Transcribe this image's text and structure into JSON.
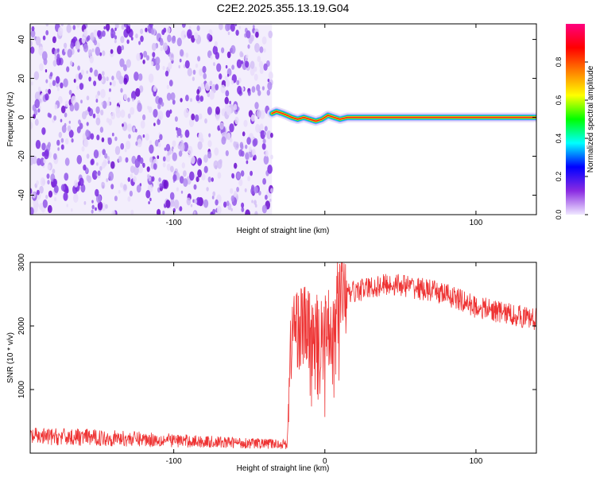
{
  "figure": {
    "title": "C2E2.2025.355.13.19.G04"
  },
  "chart_data": [
    {
      "type": "heatmap",
      "xlabel": "Height of straight line (km)",
      "ylabel": "Frequency (Hz)",
      "xlim": [
        -195,
        140
      ],
      "ylim": [
        -50,
        48
      ],
      "xticks": [
        -100,
        0,
        100
      ],
      "xtick_labels": [
        "-100",
        "",
        "100"
      ],
      "yticks": [
        -40,
        -20,
        0,
        20,
        40
      ],
      "ytick_labels": [
        "-40",
        "-20",
        "0",
        "20",
        "40"
      ],
      "noise_region_x": [
        -195,
        -35
      ],
      "ridge": {
        "x": [
          -35,
          -32,
          -28,
          -25,
          -22,
          -18,
          -14,
          -10,
          -6,
          -2,
          2,
          6,
          10,
          15,
          25,
          40,
          60,
          80,
          100,
          120,
          140
        ],
        "y": [
          2,
          3,
          2,
          1,
          0,
          -1,
          0,
          -1,
          -2,
          -1,
          1,
          0,
          -1,
          0,
          0,
          0,
          0,
          0,
          0,
          0,
          0
        ]
      },
      "colorbar": {
        "label": "Normalized spectral amplitude",
        "range": [
          0,
          1
        ],
        "ticks": [
          0.0,
          0.2,
          0.4,
          0.6,
          0.8
        ],
        "tick_labels": [
          "0.0",
          "0.2",
          "0.4",
          "0.6",
          "0.8"
        ],
        "colors": [
          "#f0e8ff",
          "#8a2be2",
          "#0000ff",
          "#00ffff",
          "#00ff00",
          "#ffff00",
          "#ff8000",
          "#ff0000",
          "#ff007f"
        ]
      },
      "grid": false,
      "legend": "none"
    },
    {
      "type": "line",
      "xlabel": "Height of straight line (km)",
      "ylabel": "SNR (10 * v/v)",
      "xlim": [
        -195,
        140
      ],
      "ylim": [
        0,
        3000
      ],
      "xticks": [
        -100,
        0,
        100
      ],
      "xtick_labels": [
        "-100",
        "0",
        "100"
      ],
      "yticks": [
        1000,
        2000,
        3000
      ],
      "ytick_labels": [
        "1000",
        "2000",
        "3000"
      ],
      "series_color": "#ee3333",
      "envelope": {
        "x": [
          -195,
          -160,
          -120,
          -80,
          -40,
          -25,
          -22,
          -20,
          -10,
          -5,
          0,
          5,
          10,
          20,
          30,
          40,
          50,
          60,
          70,
          80,
          90,
          100,
          110,
          120,
          130,
          140
        ],
        "y": [
          260,
          250,
          220,
          180,
          150,
          140,
          1900,
          2000,
          1950,
          1900,
          1800,
          2100,
          2400,
          2550,
          2600,
          2650,
          2650,
          2600,
          2550,
          2500,
          2400,
          2300,
          2250,
          2200,
          2150,
          2100
        ]
      },
      "grid": false,
      "legend": "none"
    }
  ]
}
